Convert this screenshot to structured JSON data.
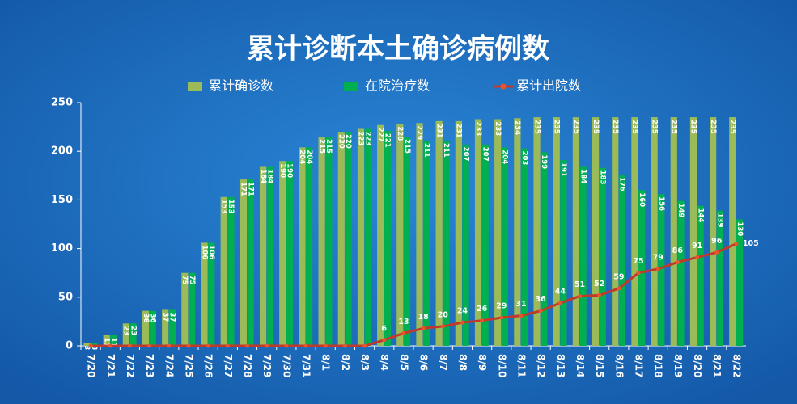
{
  "chart_data": {
    "type": "bar",
    "title": "累计诊断本土确诊病例数",
    "categories": [
      "7/20",
      "7/21",
      "7/22",
      "7/23",
      "7/24",
      "7/25",
      "7/26",
      "7/27",
      "7/28",
      "7/29",
      "7/30",
      "7/31",
      "8/1",
      "8/2",
      "8/3",
      "8/4",
      "8/5",
      "8/6",
      "8/7",
      "8/8",
      "8/9",
      "8/10",
      "8/11",
      "8/12",
      "8/13",
      "8/14",
      "8/15",
      "8/16",
      "8/17",
      "8/18",
      "8/19",
      "8/20",
      "8/21",
      "8/22"
    ],
    "series": [
      {
        "name": "累计确诊数",
        "color": "#9bbb59",
        "type": "bar",
        "values": [
          3,
          11,
          23,
          36,
          37,
          75,
          106,
          153,
          171,
          184,
          190,
          204,
          215,
          220,
          223,
          227,
          228,
          229,
          231,
          231,
          233,
          233,
          234,
          235,
          235,
          235,
          235,
          235,
          235,
          235,
          235,
          235,
          235,
          235
        ]
      },
      {
        "name": "在院治疗数",
        "color": "#00b050",
        "type": "bar",
        "values": [
          3,
          11,
          23,
          36,
          37,
          75,
          106,
          153,
          171,
          184,
          190,
          204,
          215,
          220,
          223,
          221,
          215,
          211,
          211,
          207,
          207,
          204,
          203,
          199,
          191,
          184,
          183,
          176,
          160,
          156,
          149,
          144,
          139,
          130
        ]
      },
      {
        "name": "累计出院数",
        "color": "#c0392b",
        "type": "line",
        "values": [
          0,
          0,
          0,
          0,
          0,
          0,
          0,
          0,
          0,
          0,
          0,
          0,
          0,
          0,
          0,
          6,
          13,
          18,
          20,
          24,
          26,
          29,
          31,
          36,
          44,
          51,
          52,
          59,
          75,
          79,
          86,
          91,
          96,
          105
        ]
      }
    ],
    "ylim": [
      0,
      250
    ],
    "yticks": [
      0,
      50,
      100,
      150,
      200,
      250
    ],
    "grid": false,
    "legend": "top"
  }
}
